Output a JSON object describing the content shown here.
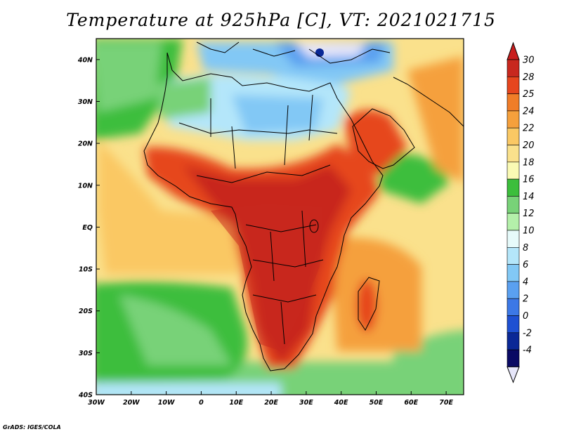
{
  "title": "Temperature at 925hPa [C], VT: 2021021715",
  "credit": "GrADS: IGES/COLA",
  "map": {
    "lon_range": [
      -30,
      75
    ],
    "lat_range": [
      -40,
      45
    ],
    "lon_ticks": [
      "30W",
      "20W",
      "10W",
      "0",
      "10E",
      "20E",
      "30E",
      "40E",
      "50E",
      "60E",
      "70E"
    ],
    "lat_ticks": [
      "40N",
      "30N",
      "20N",
      "10N",
      "EQ",
      "10S",
      "20S",
      "30S",
      "40S"
    ]
  },
  "colorbar": {
    "labels": [
      "30",
      "28",
      "25",
      "24",
      "22",
      "20",
      "18",
      "16",
      "14",
      "12",
      "10",
      "8",
      "6",
      "4",
      "2",
      "0",
      "-2",
      "-4"
    ],
    "colors": [
      "#c8281e",
      "#e6461e",
      "#f07d28",
      "#f5a03c",
      "#fac864",
      "#fae18c",
      "#fafab4",
      "#3cbe3c",
      "#78d278",
      "#b4f0aa",
      "#e6fafa",
      "#b4e6fa",
      "#82c8f5",
      "#5aa0f0",
      "#3c78e6",
      "#1e50d2",
      "#0a2896",
      "#0a0a64"
    ],
    "top_arrow_color": "#c81e1e",
    "bottom_arrow_color": "#e6e6fa"
  }
}
